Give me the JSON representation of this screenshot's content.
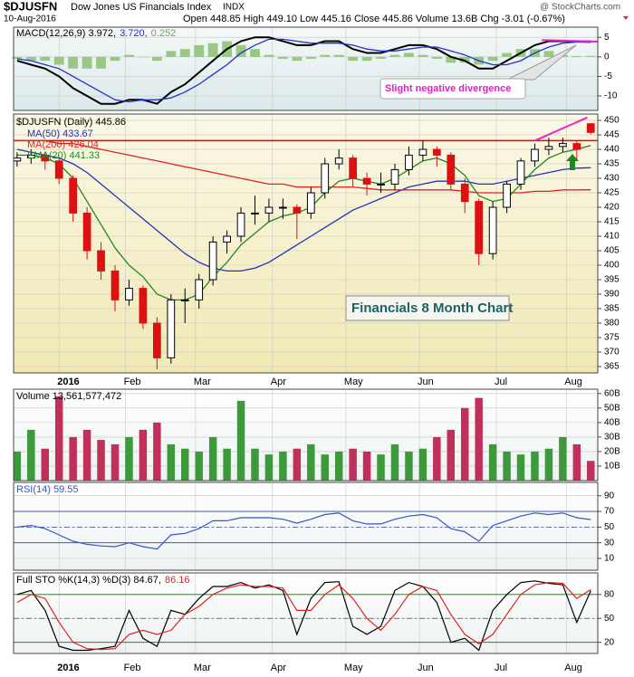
{
  "header": {
    "symbol": "$DJUSFN",
    "name": "Dow Jones US Financials Index",
    "exchange": "INDX",
    "date": "10-Aug-2016",
    "quote": "Open 448.85 High 449.10 Low 445.16 Close 445.86 Volume 13.6B Chg -3.01 (-0.67%)",
    "watermark": "@ StockCharts.com"
  },
  "chart_data": [
    {
      "type": "macd",
      "x": [
        0,
        4,
        8,
        12,
        16,
        20,
        24,
        28,
        32,
        36,
        40,
        44,
        48,
        52,
        56,
        60,
        64,
        68,
        72,
        76,
        80,
        84,
        88,
        92,
        96,
        100,
        104,
        108,
        112,
        116,
        120,
        124,
        128,
        132,
        136,
        140,
        144,
        148,
        152,
        156,
        160,
        164
      ],
      "xlim": [
        -1,
        166
      ],
      "ylim": [
        -13.7,
        7.6
      ],
      "yticks": [
        -10,
        -5,
        0,
        5
      ],
      "grid": true,
      "series": [
        {
          "name": "MACD(12,26,9) 3.972,",
          "color": "#000000",
          "kind": "line",
          "values": [
            -1,
            -2,
            -3,
            -5,
            -8,
            -10,
            -12,
            -12,
            -11,
            -11,
            -12,
            -9,
            -7,
            -4,
            -1,
            2,
            4,
            5,
            5,
            4,
            3,
            3,
            4,
            4,
            2,
            1,
            1,
            2,
            3,
            3,
            2,
            0,
            -1,
            -3,
            -3,
            -1,
            1,
            3,
            4,
            4,
            4,
            3.972
          ]
        },
        {
          "name": "3.720,",
          "color": "#2233cc",
          "kind": "line",
          "values": [
            -0.5,
            -1,
            -2,
            -3,
            -5,
            -7,
            -9,
            -11,
            -11.5,
            -11,
            -11,
            -10.5,
            -9,
            -7,
            -4.5,
            -2,
            1,
            3,
            4.5,
            4.5,
            4,
            3.5,
            3.5,
            3.5,
            3,
            2,
            1.5,
            1.5,
            2,
            2.5,
            2.5,
            1.5,
            0.5,
            -1,
            -2,
            -2,
            -1,
            1,
            2.5,
            3.5,
            3.8,
            3.72
          ]
        },
        {
          "name": "0.252",
          "color": "#8cc070",
          "kind": "bar",
          "values": [
            -0.5,
            -1,
            -1,
            -2,
            -3,
            -3,
            -3,
            -1,
            0.5,
            0,
            -1,
            1.5,
            2,
            3,
            3.5,
            4,
            3,
            2,
            0.5,
            -0.5,
            -1,
            -0.5,
            0.5,
            0.5,
            -1,
            -1,
            -0.5,
            0.5,
            1,
            0.5,
            -0.5,
            -1.5,
            -1.5,
            -2,
            -1,
            1,
            2,
            2,
            1.5,
            0.5,
            0.2,
            0.252
          ]
        }
      ],
      "trendline": {
        "x": [
          150,
          166
        ],
        "y": [
          4.3,
          3.9
        ],
        "color": "#ee22cc"
      },
      "annotation": "Slight negative divergence"
    },
    {
      "type": "candlestick",
      "x": [
        0,
        4,
        8,
        12,
        16,
        20,
        24,
        28,
        32,
        36,
        40,
        44,
        48,
        52,
        56,
        60,
        64,
        68,
        72,
        76,
        80,
        84,
        88,
        92,
        96,
        100,
        104,
        108,
        112,
        116,
        120,
        124,
        128,
        132,
        136,
        140,
        144,
        148,
        152,
        156,
        160,
        164
      ],
      "xlim": [
        -1,
        166
      ],
      "ylim": [
        362.8,
        452.2
      ],
      "yticks": [
        365,
        370,
        375,
        380,
        385,
        390,
        395,
        400,
        405,
        410,
        415,
        420,
        425,
        430,
        435,
        440,
        445,
        450
      ],
      "grid": true,
      "xticks": [
        {
          "value": 12,
          "label": "2016"
        },
        {
          "value": 31,
          "label": "Feb"
        },
        {
          "value": 51,
          "label": "Mar"
        },
        {
          "value": 73,
          "label": "Apr"
        },
        {
          "value": 94,
          "label": "May"
        },
        {
          "value": 115,
          "label": "Jun"
        },
        {
          "value": 137,
          "label": "Jul"
        },
        {
          "value": 157,
          "label": "Aug"
        }
      ],
      "name": "$DJUSFN (Daily) 445.86",
      "up_color": "#000000",
      "down_color": "#dd1111",
      "open": [
        436,
        437,
        438,
        436,
        430,
        418,
        405,
        398,
        388,
        392,
        380,
        368,
        388,
        388,
        395,
        408,
        410,
        418,
        418,
        420,
        420,
        418,
        425,
        435,
        437,
        430,
        428,
        428,
        433,
        438,
        440,
        438,
        428,
        422,
        404,
        420,
        428,
        436,
        440,
        441,
        442,
        448.85
      ],
      "high": [
        439,
        440,
        439,
        437,
        431,
        420,
        408,
        400,
        395,
        393,
        382,
        390,
        392,
        397,
        410,
        412,
        420,
        424,
        423,
        423,
        421,
        427,
        437,
        440,
        438,
        432,
        432,
        435,
        441,
        443,
        441,
        439,
        430,
        423,
        422,
        429,
        437,
        442,
        444,
        444,
        443,
        449.1
      ],
      "low": [
        434,
        435,
        433,
        428,
        415,
        402,
        395,
        384,
        386,
        378,
        364,
        366,
        380,
        385,
        393,
        404,
        408,
        414,
        415,
        416,
        409,
        416,
        423,
        433,
        427,
        424,
        425,
        426,
        431,
        436,
        434,
        426,
        418,
        400,
        402,
        418,
        426,
        434,
        438,
        439,
        436,
        445.16
      ],
      "close": [
        437,
        438,
        436,
        430,
        418,
        405,
        398,
        388,
        392,
        380,
        368,
        388,
        388,
        395,
        408,
        410,
        418,
        418,
        420,
        420,
        418,
        425,
        435,
        437,
        430,
        428,
        428,
        433,
        438,
        440,
        438,
        428,
        422,
        404,
        420,
        428,
        436,
        440,
        441,
        442,
        440,
        445.86
      ],
      "series": [
        {
          "name": "MA(50) 433.67",
          "color": "#2233bb",
          "values": [
            440,
            439,
            438,
            437,
            435,
            432,
            428,
            424,
            420,
            416,
            412,
            408,
            404,
            401,
            399,
            398,
            398,
            399,
            401,
            404,
            407,
            410,
            413,
            416,
            419,
            421,
            423,
            425,
            427,
            428,
            429,
            429,
            429,
            428,
            428,
            429,
            430,
            431,
            432,
            433,
            433.5,
            433.67
          ]
        },
        {
          "name": "MA(200) 426.04",
          "color": "#dd2222",
          "values": [
            443,
            443,
            443,
            442,
            442,
            441,
            440,
            439,
            438,
            437,
            436,
            435,
            434,
            433,
            432,
            431,
            430,
            429,
            428,
            428,
            427,
            427,
            427,
            427,
            427,
            426.5,
            426,
            426,
            426,
            426,
            426,
            426,
            425.5,
            425,
            425,
            425,
            425,
            425.5,
            425.5,
            426,
            426,
            426.04
          ]
        },
        {
          "name": "EMA(20) 441.33",
          "color": "#228822",
          "values": [
            438,
            438,
            437,
            435,
            430,
            422,
            414,
            406,
            400,
            396,
            390,
            388,
            388,
            390,
            396,
            401,
            407,
            411,
            415,
            417,
            418,
            420,
            425,
            429,
            430,
            429,
            428,
            430,
            433,
            436,
            437,
            435,
            431,
            424,
            422,
            423,
            428,
            433,
            437,
            439,
            440,
            441.33
          ]
        }
      ],
      "resistance": 443,
      "resistance_color": "#ee0000",
      "trendline": {
        "x": [
          148,
          163
        ],
        "y": [
          443,
          451
        ],
        "color": "#ee22cc"
      },
      "annotation": "Financials 8 Month Chart"
    },
    {
      "type": "bar",
      "x": [
        0,
        4,
        8,
        12,
        16,
        20,
        24,
        28,
        32,
        36,
        40,
        44,
        48,
        52,
        56,
        60,
        64,
        68,
        72,
        76,
        80,
        84,
        88,
        92,
        96,
        100,
        104,
        108,
        112,
        116,
        120,
        124,
        128,
        132,
        136,
        140,
        144,
        148,
        152,
        156,
        160,
        164
      ],
      "xlim": [
        -1,
        166
      ],
      "ylim": [
        0,
        63
      ],
      "yticks": [
        {
          "value": 10,
          "label": "10B"
        },
        {
          "value": 20,
          "label": "20B"
        },
        {
          "value": 30,
          "label": "30B"
        },
        {
          "value": 40,
          "label": "40B"
        },
        {
          "value": 50,
          "label": "50B"
        },
        {
          "value": 60,
          "label": "60B"
        }
      ],
      "grid": true,
      "name": "Volume 13,561,577,472",
      "up_color": "#3c9a3c",
      "down_color": "#c0305a",
      "values": [
        20,
        35,
        22,
        58,
        30,
        35,
        28,
        25,
        30,
        35,
        40,
        25,
        22,
        20,
        30,
        22,
        55,
        22,
        18,
        20,
        22,
        25,
        18,
        20,
        22,
        20,
        18,
        25,
        20,
        22,
        30,
        35,
        50,
        57,
        25,
        20,
        18,
        20,
        22,
        30,
        25,
        13.56
      ]
    },
    {
      "type": "line",
      "x": [
        0,
        4,
        8,
        12,
        16,
        20,
        24,
        28,
        32,
        36,
        40,
        44,
        48,
        52,
        56,
        60,
        64,
        68,
        72,
        76,
        80,
        84,
        88,
        92,
        96,
        100,
        104,
        108,
        112,
        116,
        120,
        124,
        128,
        132,
        136,
        140,
        144,
        148,
        152,
        156,
        160,
        164
      ],
      "xlim": [
        -1,
        166
      ],
      "ylim": [
        -5,
        107
      ],
      "yticks": [
        10,
        30,
        50,
        70,
        90
      ],
      "grid": true,
      "reference_lines": [
        30,
        50,
        70
      ],
      "reference_color": "#3344aa",
      "series": [
        {
          "name": "RSI(14) 59.55",
          "color": "#3355cc",
          "values": [
            50,
            52,
            48,
            40,
            32,
            28,
            26,
            25,
            30,
            25,
            22,
            40,
            42,
            48,
            58,
            58,
            62,
            62,
            62,
            60,
            55,
            60,
            66,
            68,
            58,
            54,
            54,
            60,
            64,
            66,
            62,
            48,
            44,
            32,
            52,
            58,
            64,
            68,
            66,
            68,
            62,
            59.55
          ]
        }
      ]
    },
    {
      "type": "line",
      "x": [
        0,
        4,
        8,
        12,
        16,
        20,
        24,
        28,
        32,
        36,
        40,
        44,
        48,
        52,
        56,
        60,
        64,
        68,
        72,
        76,
        80,
        84,
        88,
        92,
        96,
        100,
        104,
        108,
        112,
        116,
        120,
        124,
        128,
        132,
        136,
        140,
        144,
        148,
        152,
        156,
        160,
        164
      ],
      "xlim": [
        -1,
        166
      ],
      "ylim": [
        6,
        107
      ],
      "yticks": [
        20,
        50,
        80
      ],
      "grid": true,
      "xticks": [
        {
          "value": 12,
          "label": "2016"
        },
        {
          "value": 31,
          "label": "Feb"
        },
        {
          "value": 51,
          "label": "Mar"
        },
        {
          "value": 73,
          "label": "Apr"
        },
        {
          "value": 94,
          "label": "May"
        },
        {
          "value": 115,
          "label": "Jun"
        },
        {
          "value": 137,
          "label": "Jul"
        },
        {
          "value": 157,
          "label": "Aug"
        }
      ],
      "reference_lines": [
        20,
        50,
        80
      ],
      "reference_color": "#226622",
      "series": [
        {
          "name": "Full STO %K(14,3) %D(3) 84.67,",
          "color": "#000000",
          "values": [
            80,
            85,
            60,
            15,
            10,
            10,
            12,
            15,
            60,
            25,
            15,
            60,
            55,
            75,
            90,
            90,
            95,
            88,
            92,
            85,
            30,
            75,
            95,
            96,
            40,
            30,
            40,
            85,
            95,
            90,
            70,
            20,
            25,
            10,
            60,
            80,
            95,
            97,
            94,
            92,
            45,
            84.67
          ]
        },
        {
          "name": "86.16",
          "color": "#dd2222",
          "values": [
            70,
            80,
            75,
            45,
            20,
            12,
            11,
            12,
            30,
            35,
            30,
            35,
            55,
            65,
            80,
            88,
            92,
            90,
            90,
            88,
            60,
            60,
            80,
            92,
            75,
            50,
            35,
            55,
            80,
            90,
            85,
            55,
            30,
            18,
            30,
            55,
            80,
            92,
            95,
            94,
            75,
            86.16
          ]
        }
      ]
    }
  ]
}
